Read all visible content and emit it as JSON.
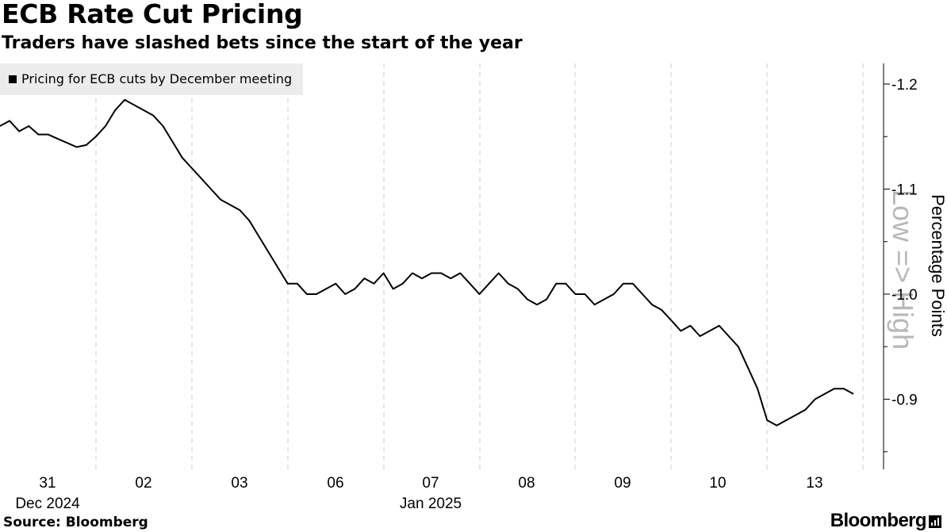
{
  "header": {
    "title": "ECB Rate Cut Pricing",
    "subtitle": "Traders have slashed bets since the start of the year"
  },
  "footer": {
    "source": "Source: Bloomberg",
    "brand": "Bloomberg"
  },
  "colors": {
    "line": "#000000",
    "gridline": "#cccccc",
    "legend_bg": "#ececec",
    "watermark": "#b8b8b8"
  },
  "chart_data": {
    "type": "line",
    "legend": "Pricing for ECB cuts by December meeting",
    "legend_position": "top-left",
    "ylabel": "Percentage Points",
    "y_axis_annotation": "Low => High",
    "y_axis_side": "right",
    "y_inverted": true,
    "ylim": [
      -1.2,
      -0.85
    ],
    "yticks": [
      -1.2,
      -1.1,
      -1.0,
      -0.9
    ],
    "ytick_labels": [
      "-1.2",
      "-1.1",
      "-1.0",
      "-0.9"
    ],
    "grid": "vertical dashed",
    "x_labels": [
      "31",
      "02",
      "03",
      "06",
      "07",
      "08",
      "09",
      "10",
      "13"
    ],
    "x_sublabels": [
      {
        "text": "Dec 2024",
        "under": "31"
      },
      {
        "text": "Jan 2025",
        "under": "07"
      }
    ],
    "series": [
      {
        "name": "Pricing for ECB cuts by December meeting",
        "x": [
          0,
          0.1,
          0.2,
          0.3,
          0.4,
          0.5,
          0.6,
          0.7,
          0.8,
          0.9,
          1.0,
          1.1,
          1.2,
          1.3,
          1.4,
          1.5,
          1.6,
          1.7,
          1.8,
          1.9,
          2.0,
          2.1,
          2.2,
          2.3,
          2.4,
          2.5,
          2.6,
          2.7,
          2.8,
          2.9,
          3.0,
          3.1,
          3.2,
          3.3,
          3.4,
          3.5,
          3.6,
          3.7,
          3.8,
          3.9,
          4.0,
          4.1,
          4.2,
          4.3,
          4.4,
          4.5,
          4.6,
          4.7,
          4.8,
          4.9,
          5.0,
          5.1,
          5.2,
          5.3,
          5.4,
          5.5,
          5.6,
          5.7,
          5.8,
          5.9,
          6.0,
          6.1,
          6.2,
          6.3,
          6.4,
          6.5,
          6.6,
          6.7,
          6.8,
          6.9,
          7.0,
          7.1,
          7.2,
          7.3,
          7.4,
          7.5,
          7.6,
          7.7,
          7.8,
          7.9,
          8.0,
          8.1,
          8.2,
          8.3,
          8.4,
          8.5,
          8.6,
          8.7,
          8.8,
          8.9
        ],
        "values": [
          -1.16,
          -1.165,
          -1.155,
          -1.16,
          -1.152,
          -1.152,
          -1.148,
          -1.144,
          -1.14,
          -1.142,
          -1.15,
          -1.16,
          -1.175,
          -1.185,
          -1.18,
          -1.175,
          -1.17,
          -1.16,
          -1.145,
          -1.13,
          -1.12,
          -1.11,
          -1.1,
          -1.09,
          -1.085,
          -1.08,
          -1.07,
          -1.055,
          -1.04,
          -1.025,
          -1.01,
          -1.01,
          -1.0,
          -1.0,
          -1.005,
          -1.01,
          -1.0,
          -1.005,
          -1.015,
          -1.01,
          -1.02,
          -1.005,
          -1.01,
          -1.02,
          -1.015,
          -1.02,
          -1.02,
          -1.015,
          -1.02,
          -1.01,
          -1.0,
          -1.01,
          -1.02,
          -1.01,
          -1.005,
          -0.995,
          -0.99,
          -0.995,
          -1.01,
          -1.01,
          -1.0,
          -1.0,
          -0.99,
          -0.995,
          -1.0,
          -1.01,
          -1.01,
          -1.0,
          -0.99,
          -0.985,
          -0.975,
          -0.965,
          -0.97,
          -0.96,
          -0.965,
          -0.97,
          -0.96,
          -0.95,
          -0.93,
          -0.91,
          -0.88,
          -0.875,
          -0.88,
          -0.885,
          -0.89,
          -0.9,
          -0.905,
          -0.91,
          -0.91,
          -0.905
        ]
      }
    ]
  }
}
